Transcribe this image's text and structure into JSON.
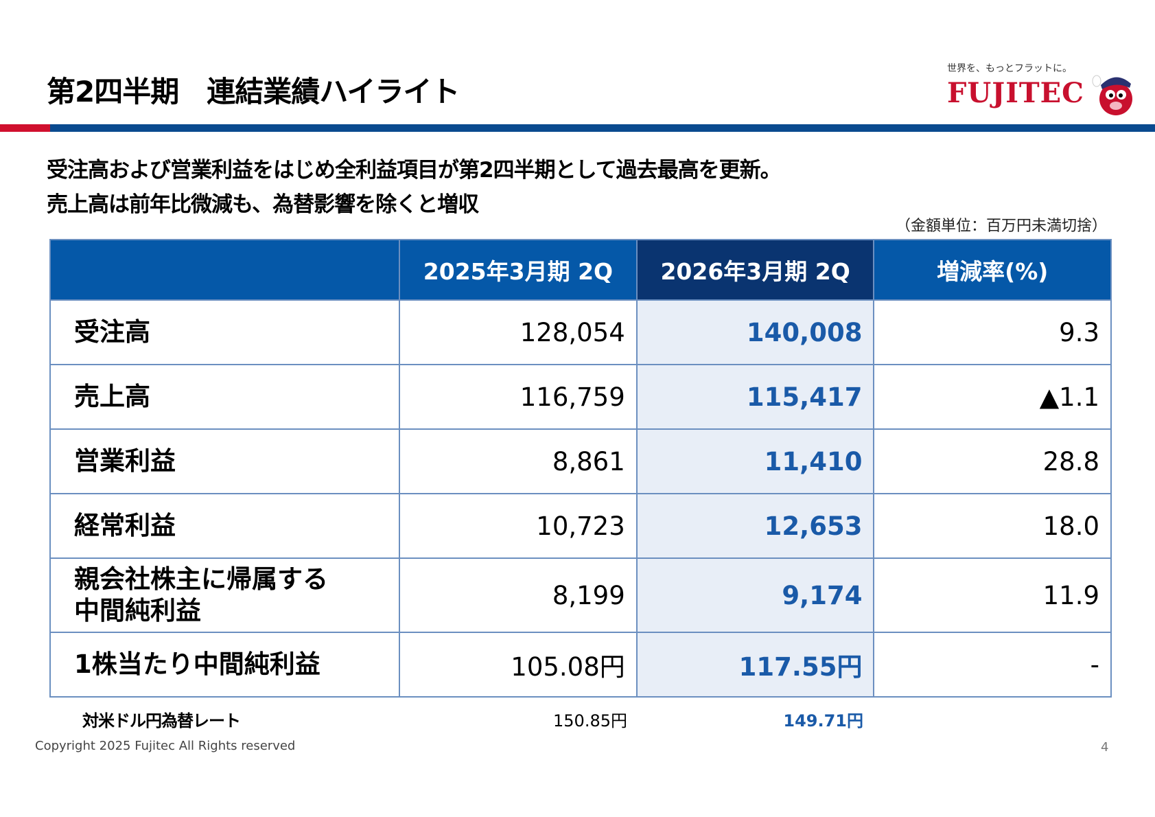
{
  "header": {
    "title": "第2四半期　連結業績ハイライト",
    "tagline": "世界を、もっとフラットに。",
    "logo_text": "FUJITEC",
    "brand_red": "#c8102e",
    "brand_blue": "#0a4a8f"
  },
  "summary": {
    "line1": "受注高および営業利益をはじめ全利益項目が第2四半期として過去最高を更新。",
    "line2": "売上高は前年比微減も、為替影響を除くと増収"
  },
  "unit_note": "（金額単位：百万円未満切捨）",
  "table": {
    "headers": [
      "",
      "2025年3月期 2Q",
      "2026年3月期 2Q",
      "増減率(%)"
    ],
    "rows": [
      {
        "label": "受注高",
        "prev": "128,054",
        "curr": "140,008",
        "change": "9.3"
      },
      {
        "label": "売上高",
        "prev": "116,759",
        "curr": "115,417",
        "change": "▲1.1"
      },
      {
        "label": "営業利益",
        "prev": "8,861",
        "curr": "11,410",
        "change": "28.8"
      },
      {
        "label": "経常利益",
        "prev": "10,723",
        "curr": "12,653",
        "change": "18.0"
      },
      {
        "label": "親会社株主に帰属する\n中間純利益",
        "prev": "8,199",
        "curr": "9,174",
        "change": "11.9"
      },
      {
        "label": "1株当たり中間純利益",
        "prev": "105.08円",
        "curr": "117.55円",
        "change": "-"
      }
    ]
  },
  "fx_rate": {
    "label": "対米ドル円為替レート",
    "prev": "150.85円",
    "curr": "149.71円"
  },
  "footer": {
    "copyright": "Copyright 2025 Fujitec All Rights reserved",
    "page_number": "4"
  }
}
